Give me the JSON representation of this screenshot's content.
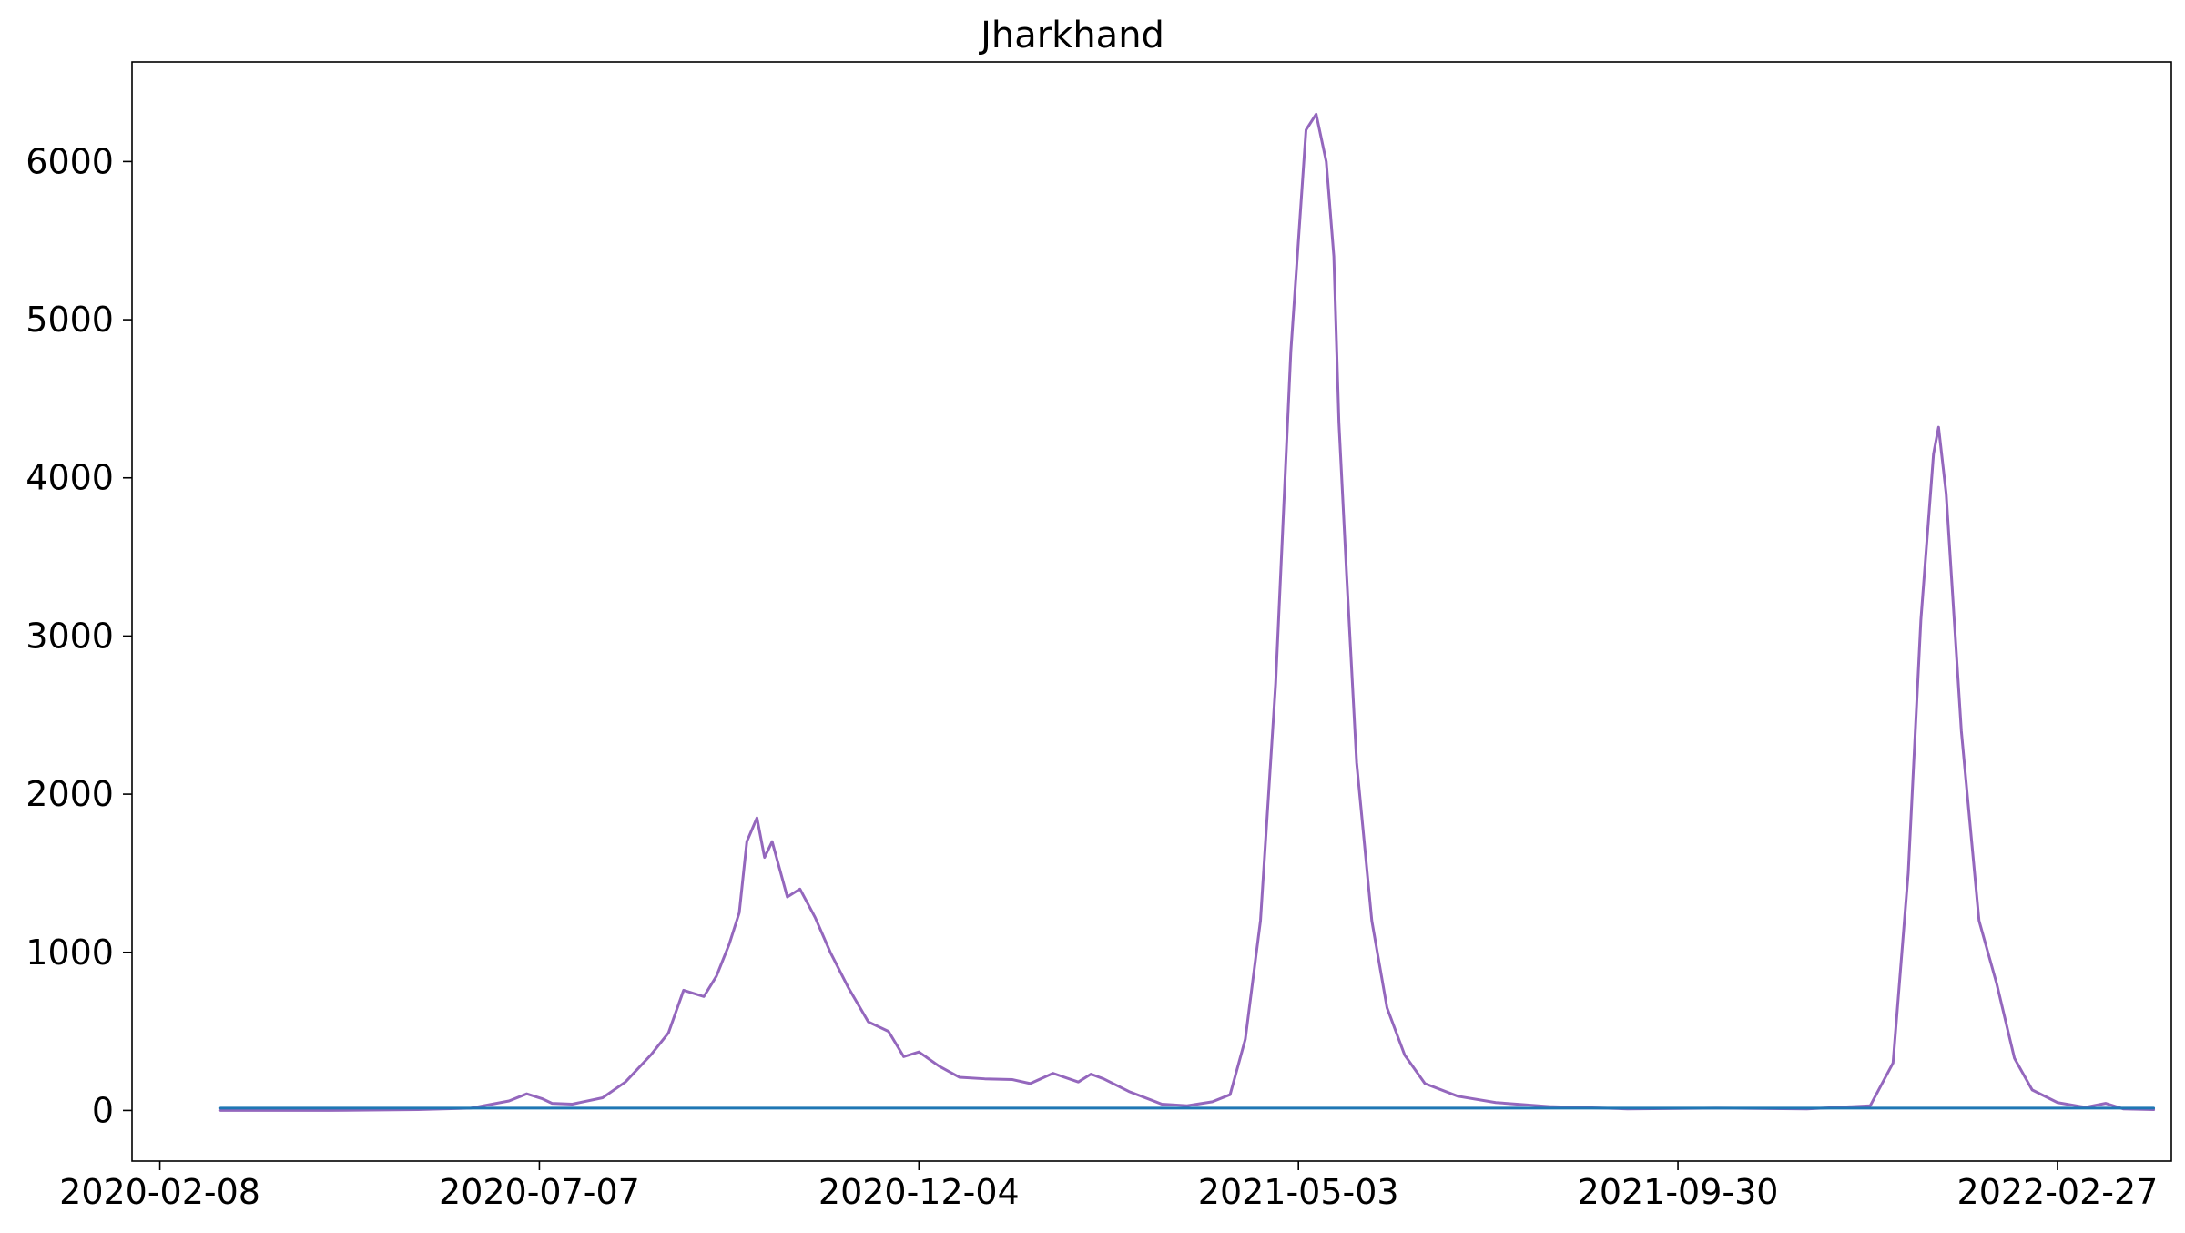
{
  "chart_data": {
    "type": "line",
    "title": "Jharkhand",
    "xlabel": "",
    "ylabel": "",
    "x_tick_labels": [
      "2020-02-08",
      "2020-07-07",
      "2020-12-04",
      "2021-05-03",
      "2021-09-30",
      "2022-02-27"
    ],
    "y_tick_labels": [
      "0",
      "1000",
      "2000",
      "3000",
      "4000",
      "5000",
      "6000"
    ],
    "y_ticks": [
      0,
      1000,
      2000,
      3000,
      4000,
      5000,
      6000
    ],
    "xlim": [
      "2020-01-28",
      "2022-04-13"
    ],
    "ylim": [
      -320,
      6630
    ],
    "grid": false,
    "legend": "none",
    "series": [
      {
        "color": "#9467bd",
        "points": [
          [
            "2020-03-03",
            0
          ],
          [
            "2020-04-15",
            0
          ],
          [
            "2020-05-20",
            5
          ],
          [
            "2020-06-10",
            15
          ],
          [
            "2020-06-25",
            60
          ],
          [
            "2020-07-02",
            105
          ],
          [
            "2020-07-08",
            75
          ],
          [
            "2020-07-12",
            45
          ],
          [
            "2020-07-20",
            40
          ],
          [
            "2020-08-01",
            80
          ],
          [
            "2020-08-10",
            180
          ],
          [
            "2020-08-20",
            350
          ],
          [
            "2020-08-27",
            490
          ],
          [
            "2020-09-02",
            760
          ],
          [
            "2020-09-06",
            740
          ],
          [
            "2020-09-10",
            720
          ],
          [
            "2020-09-15",
            850
          ],
          [
            "2020-09-20",
            1050
          ],
          [
            "2020-09-24",
            1250
          ],
          [
            "2020-09-27",
            1700
          ],
          [
            "2020-10-01",
            1850
          ],
          [
            "2020-10-04",
            1600
          ],
          [
            "2020-10-07",
            1700
          ],
          [
            "2020-10-13",
            1350
          ],
          [
            "2020-10-18",
            1400
          ],
          [
            "2020-10-24",
            1220
          ],
          [
            "2020-10-30",
            1000
          ],
          [
            "2020-11-06",
            780
          ],
          [
            "2020-11-14",
            560
          ],
          [
            "2020-11-22",
            500
          ],
          [
            "2020-11-28",
            340
          ],
          [
            "2020-12-04",
            370
          ],
          [
            "2020-12-12",
            280
          ],
          [
            "2020-12-20",
            210
          ],
          [
            "2020-12-30",
            200
          ],
          [
            "2021-01-10",
            195
          ],
          [
            "2021-01-17",
            170
          ],
          [
            "2021-01-26",
            235
          ],
          [
            "2021-02-05",
            180
          ],
          [
            "2021-02-10",
            230
          ],
          [
            "2021-02-15",
            200
          ],
          [
            "2021-02-25",
            120
          ],
          [
            "2021-03-10",
            40
          ],
          [
            "2021-03-20",
            30
          ],
          [
            "2021-03-30",
            55
          ],
          [
            "2021-04-06",
            100
          ],
          [
            "2021-04-12",
            450
          ],
          [
            "2021-04-18",
            1200
          ],
          [
            "2021-04-24",
            2700
          ],
          [
            "2021-04-30",
            4800
          ],
          [
            "2021-05-06",
            6200
          ],
          [
            "2021-05-10",
            6300
          ],
          [
            "2021-05-14",
            6000
          ],
          [
            "2021-05-17",
            5400
          ],
          [
            "2021-05-19",
            4350
          ],
          [
            "2021-05-22",
            3400
          ],
          [
            "2021-05-26",
            2200
          ],
          [
            "2021-06-01",
            1200
          ],
          [
            "2021-06-07",
            650
          ],
          [
            "2021-06-14",
            350
          ],
          [
            "2021-06-22",
            170
          ],
          [
            "2021-07-05",
            90
          ],
          [
            "2021-07-20",
            50
          ],
          [
            "2021-08-10",
            25
          ],
          [
            "2021-09-10",
            10
          ],
          [
            "2021-10-15",
            15
          ],
          [
            "2021-11-20",
            10
          ],
          [
            "2021-12-15",
            30
          ],
          [
            "2021-12-24",
            300
          ],
          [
            "2021-12-30",
            1500
          ],
          [
            "2022-01-04",
            3100
          ],
          [
            "2022-01-09",
            4150
          ],
          [
            "2022-01-11",
            4320
          ],
          [
            "2022-01-14",
            3900
          ],
          [
            "2022-01-20",
            2400
          ],
          [
            "2022-01-27",
            1200
          ],
          [
            "2022-02-03",
            800
          ],
          [
            "2022-02-10",
            330
          ],
          [
            "2022-02-17",
            130
          ],
          [
            "2022-02-27",
            50
          ],
          [
            "2022-03-10",
            20
          ],
          [
            "2022-03-18",
            45
          ],
          [
            "2022-03-25",
            10
          ],
          [
            "2022-04-06",
            5
          ]
        ]
      },
      {
        "color": "#1f77b4",
        "points": [
          [
            "2020-03-03",
            15
          ],
          [
            "2022-04-06",
            15
          ]
        ]
      }
    ]
  }
}
